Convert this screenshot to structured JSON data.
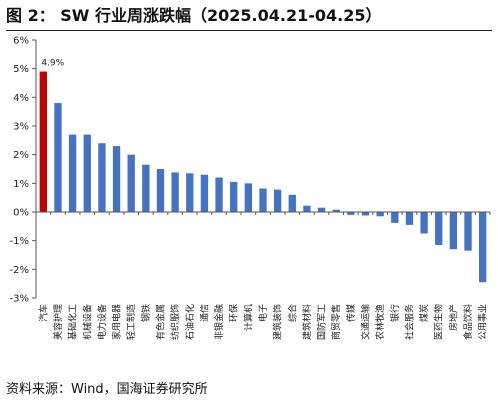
{
  "page": {
    "title": "图 2：  SW 行业周涨跌幅（2025.04.21-04.25）",
    "source": "资料来源：Wind，国海证券研究所"
  },
  "chart_data": {
    "type": "bar",
    "title": "",
    "xlabel": "",
    "ylabel": "",
    "ylim": [
      -3,
      6
    ],
    "yticks": [
      6,
      5,
      4,
      3,
      2,
      1,
      0,
      -1,
      -2,
      -3
    ],
    "ytick_labels": [
      "6%",
      "5%",
      "4%",
      "3%",
      "2%",
      "1%",
      "0%",
      "-1%",
      "-2%",
      "-3%"
    ],
    "grid": false,
    "legend": "none",
    "colors": {
      "highlight": "#c00000",
      "bar": "#4472c4",
      "axis": "#555555",
      "text": "#222222"
    },
    "categories": [
      "汽车",
      "美容护理",
      "基础化工",
      "机械设备",
      "电力设备",
      "家用电器",
      "轻工制造",
      "钢铁",
      "有色金属",
      "纺织服饰",
      "石油石化",
      "通信",
      "非银金融",
      "环保",
      "计算机",
      "电子",
      "建筑装饰",
      "综合",
      "建筑材料",
      "国防军工",
      "商贸零售",
      "传媒",
      "交通运输",
      "农林牧渔",
      "银行",
      "社会服务",
      "煤炭",
      "医药生物",
      "房地产",
      "食品饮料",
      "公用事业"
    ],
    "values": [
      4.9,
      3.8,
      2.7,
      2.7,
      2.4,
      2.3,
      2.0,
      1.65,
      1.5,
      1.38,
      1.35,
      1.3,
      1.2,
      1.05,
      1.0,
      0.82,
      0.78,
      0.6,
      0.22,
      0.15,
      0.08,
      -0.1,
      -0.12,
      -0.15,
      -0.38,
      -0.45,
      -0.75,
      -1.15,
      -1.3,
      -1.35,
      -2.45
    ],
    "highlight_index": 0,
    "annotations": [
      {
        "index": 0,
        "text": "4.9%"
      }
    ]
  }
}
